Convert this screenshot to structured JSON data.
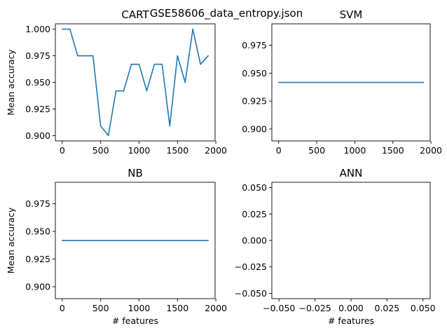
{
  "figure": {
    "suptitle": "GSE58606_data_entropy.json"
  },
  "chart_data": [
    {
      "type": "line",
      "title": "CART",
      "xlabel": "",
      "ylabel": "Mean accuracy",
      "xlim": [
        -90,
        1990
      ],
      "ylim": [
        0.895,
        1.005
      ],
      "xticks": [
        0,
        500,
        1000,
        1500,
        2000
      ],
      "yticks": [
        0.9,
        0.925,
        0.95,
        0.975,
        1.0
      ],
      "xtick_labels": [
        "0",
        "500",
        "1000",
        "1500",
        "2000"
      ],
      "ytick_labels": [
        "0.900",
        "0.925",
        "0.950",
        "0.975",
        "1.000"
      ],
      "color": "#1f77b4",
      "series": [
        {
          "x": [
            0,
            100,
            200,
            300,
            400,
            500,
            600,
            700,
            800,
            900,
            1000,
            1100,
            1200,
            1300,
            1400,
            1500,
            1600,
            1700,
            1800,
            1900
          ],
          "y": [
            1.0,
            1.0,
            0.975,
            0.975,
            0.975,
            0.909,
            0.9,
            0.942,
            0.942,
            0.967,
            0.967,
            0.942,
            0.967,
            0.967,
            0.909,
            0.975,
            0.95,
            1.0,
            0.967,
            0.975
          ]
        }
      ]
    },
    {
      "type": "line",
      "title": "SVM",
      "xlabel": "",
      "ylabel": "",
      "xlim": [
        -90,
        1990
      ],
      "ylim": [
        0.8893,
        0.9942
      ],
      "xticks": [
        0,
        500,
        1000,
        1500,
        2000
      ],
      "yticks": [
        0.9,
        0.925,
        0.95,
        0.975
      ],
      "xtick_labels": [
        "0",
        "500",
        "1000",
        "1500",
        "2000"
      ],
      "ytick_labels": [
        "0.900",
        "0.925",
        "0.950",
        "0.975"
      ],
      "color": "#1f77b4",
      "series": [
        {
          "x": [
            0,
            1900
          ],
          "y": [
            0.9417,
            0.9417
          ]
        }
      ]
    },
    {
      "type": "line",
      "title": "NB",
      "xlabel": "# features",
      "ylabel": "Mean accuracy",
      "xlim": [
        -90,
        1990
      ],
      "ylim": [
        0.8893,
        0.9942
      ],
      "xticks": [
        0,
        500,
        1000,
        1500,
        2000
      ],
      "yticks": [
        0.9,
        0.925,
        0.95,
        0.975
      ],
      "xtick_labels": [
        "0",
        "500",
        "1000",
        "1500",
        "2000"
      ],
      "ytick_labels": [
        "0.900",
        "0.925",
        "0.950",
        "0.975"
      ],
      "color": "#1f77b4",
      "series": [
        {
          "x": [
            0,
            1900
          ],
          "y": [
            0.9417,
            0.9417
          ]
        }
      ]
    },
    {
      "type": "line",
      "title": "ANN",
      "xlabel": "# features",
      "ylabel": "",
      "xlim": [
        -0.055,
        0.055
      ],
      "ylim": [
        -0.055,
        0.055
      ],
      "xticks": [
        -0.05,
        -0.025,
        0.0,
        0.025,
        0.05
      ],
      "yticks": [
        -0.05,
        -0.025,
        0.0,
        0.025,
        0.05
      ],
      "xtick_labels": [
        "−0.050",
        "−0.025",
        "0.000",
        "0.025",
        "0.050"
      ],
      "ytick_labels": [
        "−0.050",
        "−0.025",
        "0.000",
        "0.025",
        "0.050"
      ],
      "color": "#1f77b4",
      "series": [
        {
          "x": [],
          "y": []
        }
      ]
    }
  ]
}
